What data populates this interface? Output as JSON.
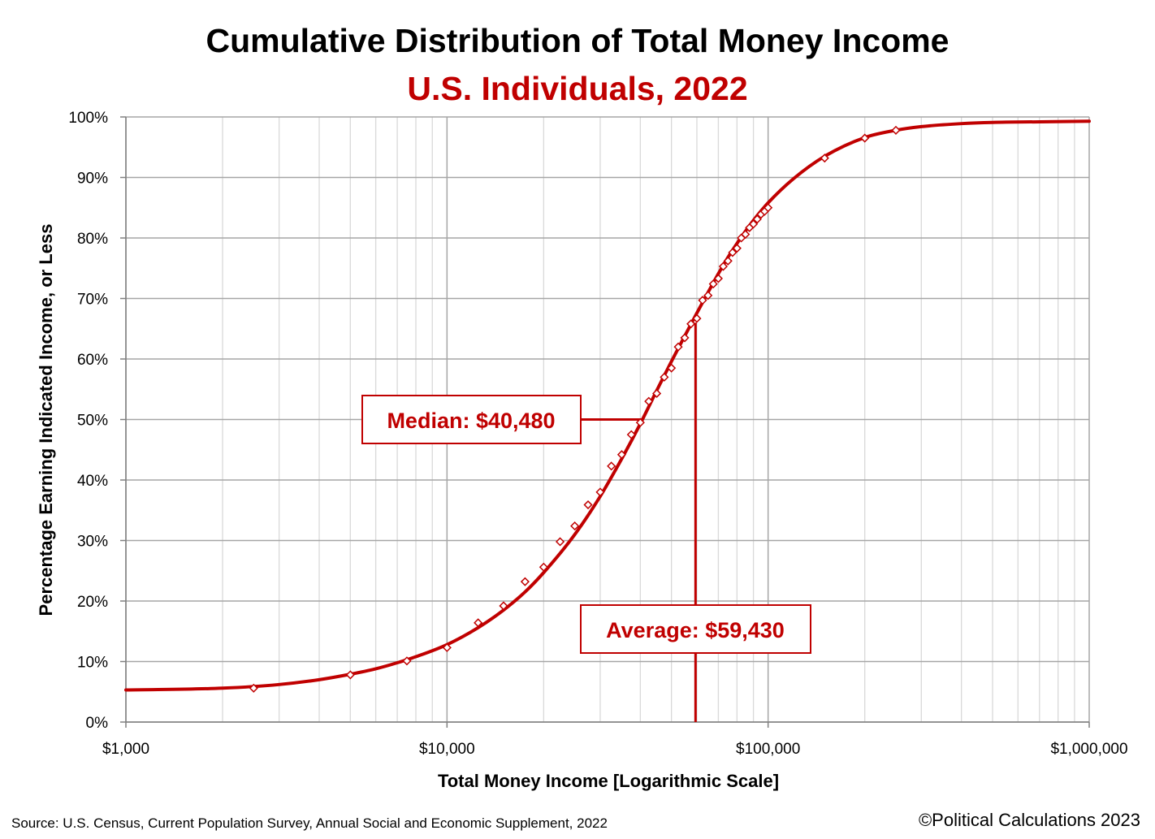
{
  "chart_data": {
    "type": "line",
    "title": "Cumulative Distribution of Total Money Income",
    "subtitle": "U.S. Individuals, 2022",
    "xlabel": "Total Money Income [Logarithmic Scale]",
    "ylabel": "Percentage Earning Indicated Income, or Less",
    "x_scale": "log",
    "xlim": [
      1000,
      1000000
    ],
    "ylim": [
      0,
      100
    ],
    "x_ticks": [
      1000,
      10000,
      100000,
      1000000
    ],
    "x_tick_labels": [
      "$1,000",
      "$10,000",
      "$100,000",
      "$1,000,000"
    ],
    "y_ticks": [
      0,
      10,
      20,
      30,
      40,
      50,
      60,
      70,
      80,
      90,
      100
    ],
    "y_tick_labels": [
      "0%",
      "10%",
      "20%",
      "30%",
      "40%",
      "50%",
      "60%",
      "70%",
      "80%",
      "90%",
      "100%"
    ],
    "grid": true,
    "colors": {
      "curve": "#c00000",
      "text": "#000000",
      "annotation": "#c00000",
      "major_grid": "#a6a6a6",
      "minor_grid": "#d9d9d9"
    },
    "fit_curve": {
      "x": [
        1000,
        2000,
        3000,
        4000,
        5000,
        6000,
        7000,
        8000,
        10000,
        12500,
        15000,
        17500,
        20000,
        25000,
        30000,
        35000,
        40000,
        45000,
        50000,
        55000,
        60000,
        65000,
        70000,
        75000,
        80000,
        90000,
        100000,
        120000,
        150000,
        200000,
        250000,
        300000,
        400000,
        500000,
        700000,
        1000000
      ],
      "y": [
        5.3,
        5.6,
        6.2,
        7.0,
        7.9,
        8.8,
        9.8,
        10.8,
        12.8,
        15.6,
        18.5,
        21.5,
        24.7,
        31.0,
        37.3,
        43.5,
        49.3,
        54.8,
        59.6,
        63.8,
        67.6,
        71.0,
        74.1,
        76.8,
        79.1,
        82.9,
        85.8,
        89.8,
        93.5,
        96.6,
        97.8,
        98.4,
        98.9,
        99.1,
        99.2,
        99.3
      ]
    },
    "data_points": {
      "x": [
        2500,
        5000,
        7500,
        10000,
        12500,
        15000,
        17500,
        20000,
        22500,
        25000,
        27500,
        30000,
        32500,
        35000,
        37500,
        40000,
        42500,
        45000,
        47500,
        50000,
        52500,
        55000,
        57500,
        60000,
        62500,
        65000,
        67500,
        70000,
        72500,
        75000,
        77500,
        80000,
        82500,
        85000,
        87500,
        90000,
        92500,
        95000,
        97500,
        100000,
        150000,
        200000,
        250000
      ],
      "y": [
        5.6,
        7.8,
        10.1,
        12.3,
        16.4,
        19.2,
        23.2,
        25.6,
        29.8,
        32.4,
        35.9,
        38.0,
        42.3,
        44.2,
        47.5,
        49.5,
        53.0,
        54.3,
        57.0,
        58.5,
        62.0,
        63.5,
        65.8,
        66.7,
        69.7,
        70.5,
        72.4,
        73.3,
        75.3,
        76.2,
        77.6,
        78.3,
        80.0,
        80.6,
        81.7,
        82.3,
        83.1,
        83.9,
        84.4,
        85.0,
        93.2,
        96.5,
        97.8
      ]
    },
    "annotations": [
      {
        "label": "Median: $40,480",
        "x": 40480,
        "y": 50
      },
      {
        "label": "Average: $59,430",
        "x": 59430,
        "y": 66
      }
    ],
    "source": "Source: U.S. Census, Current Population Survey, Annual Social and Economic Supplement, 2022",
    "credit": "©Political Calculations 2023"
  }
}
